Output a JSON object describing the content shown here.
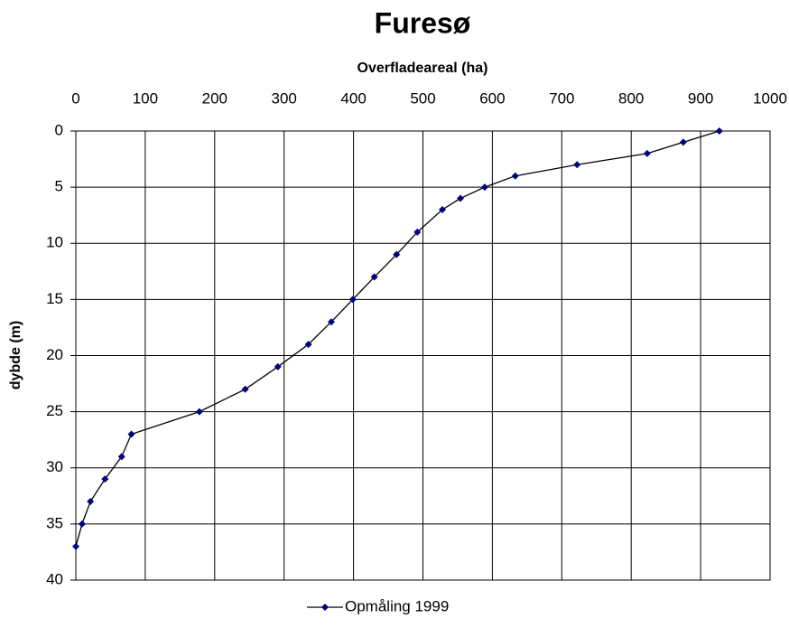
{
  "chart_data": {
    "type": "line",
    "title": "Furesø",
    "x_label": "Overfladeareal (ha)",
    "y_label": "dybde (m)",
    "xlim": [
      0,
      1000
    ],
    "xticks": [
      0,
      100,
      200,
      300,
      400,
      500,
      600,
      700,
      800,
      900,
      1000
    ],
    "ylim": [
      0,
      40
    ],
    "yticks": [
      0,
      5,
      10,
      15,
      20,
      25,
      30,
      35,
      40
    ],
    "y_inverted": true,
    "x_axis_position": "top",
    "grid": true,
    "legend": "bottom",
    "series": [
      {
        "name": "Opmåling 1999",
        "color": "#000080",
        "line_color": "#000000",
        "x": [
          927,
          875,
          823,
          722,
          633,
          589,
          554,
          528,
          492,
          462,
          430,
          399,
          368,
          335,
          291,
          244,
          178,
          80,
          66,
          42,
          21,
          9,
          0
        ],
        "values": [
          0,
          1,
          2,
          3,
          4,
          5,
          6,
          7,
          9,
          11,
          13,
          15,
          17,
          19,
          21,
          23,
          25,
          27,
          29,
          31,
          33,
          35,
          37
        ]
      }
    ]
  }
}
